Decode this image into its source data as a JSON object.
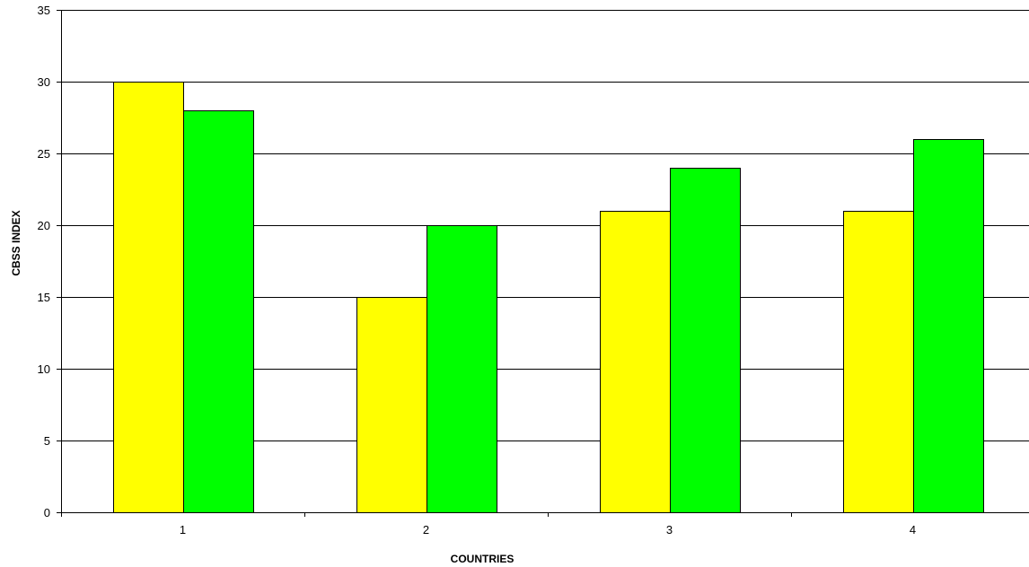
{
  "chart_data": {
    "type": "bar",
    "categories": [
      "1",
      "2",
      "3",
      "4"
    ],
    "series": [
      {
        "values": [
          30,
          15,
          21,
          21
        ],
        "color": "#ffff00"
      },
      {
        "values": [
          28,
          20,
          24,
          26
        ],
        "color": "#00ff00"
      }
    ],
    "xlabel": "COUNTRIES",
    "ylabel": "CBSS INDEX",
    "ylim": [
      0,
      35
    ],
    "yticks": [
      0,
      5,
      10,
      15,
      20,
      25,
      30,
      35
    ],
    "grid": true,
    "legend": "none"
  }
}
